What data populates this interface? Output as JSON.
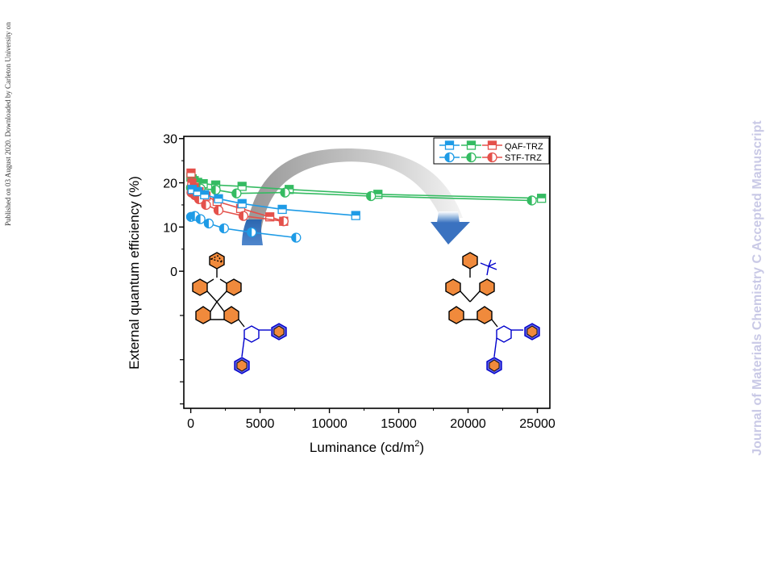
{
  "side_note": "Published on 03 August 2020. Downloaded by Carleton University on",
  "watermark": "Journal of Materials Chemistry C Accepted Manuscript",
  "colors": {
    "blue": "#1e9be6",
    "green": "#35bb62",
    "red": "#e4514b",
    "arrow_gray": "#9a9a9a",
    "arrow_blue": "#3c78c4",
    "ring_orange": "#f08a3c",
    "ring_blue": "#6060e0",
    "struct_blue": "#0000cc"
  },
  "icons": [
    "curved-arrow-icon",
    "qaf-trz-molecule-icon",
    "stf-trz-molecule-icon"
  ],
  "chart_data": {
    "type": "line",
    "xlabel": "Luminance (cd/m",
    "xlabel_sup": "2",
    "xlabel_end": ")",
    "ylabel": "External quantum efficiency (%)",
    "xlim": [
      -500,
      25900
    ],
    "ylim": [
      -31,
      30.5
    ],
    "x_ticks": [
      "0",
      "5000",
      "10000",
      "15000",
      "20000",
      "25000"
    ],
    "x_tick_values": [
      0,
      5000,
      10000,
      15000,
      20000,
      25000
    ],
    "y_ticks": [
      "30",
      "20",
      "10",
      "0"
    ],
    "y_tick_values": [
      30,
      20,
      10,
      0
    ],
    "y_minor_tick_values": [
      -10,
      -20,
      -25,
      -30
    ],
    "grid": false,
    "legend_position": "top-right",
    "legend": [
      {
        "label": "QAF-TRZ",
        "marker": "square"
      },
      {
        "label": "STF-TRZ",
        "marker": "half-circle"
      }
    ],
    "series": [
      {
        "color": "green",
        "marker": "square",
        "x": [
          10,
          100,
          250,
          500,
          900,
          1800,
          3700,
          7100,
          13500,
          25300
        ],
        "y": [
          21.3,
          20.9,
          20.5,
          20.1,
          19.8,
          19.5,
          19.2,
          18.5,
          17.4,
          16.5
        ]
      },
      {
        "color": "green",
        "marker": "half-circle",
        "x": [
          10,
          100,
          300,
          700,
          1800,
          3300,
          6800,
          13000,
          24600
        ],
        "y": [
          18.9,
          18.9,
          18.8,
          18.7,
          18.4,
          17.6,
          17.8,
          17.0,
          16.0
        ]
      },
      {
        "color": "red",
        "marker": "square",
        "x": [
          20,
          80,
          250,
          600,
          1100,
          1900,
          3600,
          5700,
          6700
        ],
        "y": [
          22.2,
          20.0,
          19.0,
          18.0,
          17.0,
          15.8,
          14.2,
          12.3,
          11.3
        ]
      },
      {
        "color": "red",
        "marker": "half-circle",
        "x": [
          50,
          300,
          600,
          1100,
          2000,
          3800,
          6700
        ],
        "y": [
          17.8,
          17.2,
          16.3,
          15.0,
          13.8,
          12.5,
          11.3
        ]
      },
      {
        "color": "blue",
        "marker": "square",
        "x": [
          100,
          500,
          1000,
          2000,
          3700,
          6600,
          11900
        ],
        "y": [
          18.5,
          18.0,
          17.3,
          16.4,
          15.3,
          14.0,
          12.6
        ]
      },
      {
        "color": "blue",
        "marker": "half-circle",
        "x": [
          20,
          300,
          700,
          1300,
          2400,
          4400,
          7600
        ],
        "y": [
          12.3,
          12.5,
          11.8,
          10.8,
          9.7,
          8.8,
          7.6
        ]
      }
    ]
  }
}
